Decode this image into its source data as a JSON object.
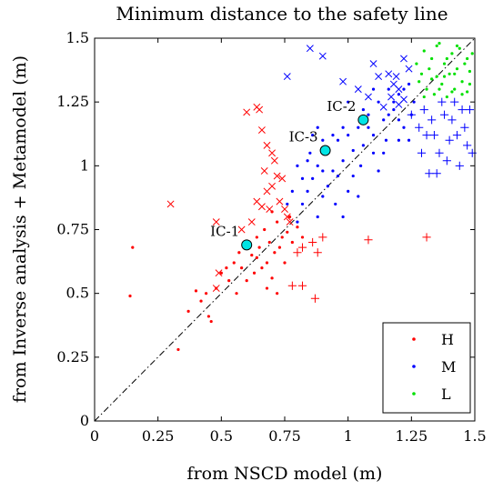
{
  "chart_data": {
    "type": "scatter",
    "title": "Minimum distance to the safety line",
    "xlabel": "from NSCD model (m)",
    "ylabel": "from Inverse analysis + Metamodel (m)",
    "xlim": [
      0,
      1.5
    ],
    "ylim": [
      0,
      1.5
    ],
    "x_ticks": [
      "0",
      "0.25",
      "0.5",
      "0.75",
      "1",
      "1.25",
      "1.5"
    ],
    "y_ticks": [
      "0",
      "0.25",
      "0.5",
      "0.75",
      "1",
      "1.25",
      "1.5"
    ],
    "grid": false,
    "legend_position": "bottom-right",
    "reference_line": {
      "type": "identity",
      "style": "dash-dot",
      "color": "#000000"
    },
    "colors": {
      "H": "#ff0000",
      "M": "#0000ff",
      "L": "#00e000",
      "IC": "#00e5e5"
    },
    "series": [
      {
        "name": "H",
        "marker": "dot",
        "color": "#ff0000",
        "points": [
          [
            0.15,
            0.68
          ],
          [
            0.14,
            0.49
          ],
          [
            0.33,
            0.28
          ],
          [
            0.37,
            0.43
          ],
          [
            0.4,
            0.51
          ],
          [
            0.42,
            0.47
          ],
          [
            0.44,
            0.5
          ],
          [
            0.45,
            0.41
          ],
          [
            0.46,
            0.39
          ],
          [
            0.48,
            0.52
          ],
          [
            0.5,
            0.58
          ],
          [
            0.52,
            0.6
          ],
          [
            0.53,
            0.55
          ],
          [
            0.55,
            0.62
          ],
          [
            0.56,
            0.5
          ],
          [
            0.57,
            0.66
          ],
          [
            0.58,
            0.6
          ],
          [
            0.6,
            0.55
          ],
          [
            0.61,
            0.7
          ],
          [
            0.62,
            0.65
          ],
          [
            0.63,
            0.58
          ],
          [
            0.64,
            0.72
          ],
          [
            0.65,
            0.68
          ],
          [
            0.66,
            0.6
          ],
          [
            0.67,
            0.75
          ],
          [
            0.68,
            0.62
          ],
          [
            0.69,
            0.7
          ],
          [
            0.7,
            0.56
          ],
          [
            0.71,
            0.66
          ],
          [
            0.72,
            0.78
          ],
          [
            0.73,
            0.68
          ],
          [
            0.74,
            0.72
          ],
          [
            0.75,
            0.62
          ],
          [
            0.76,
            0.74
          ],
          [
            0.77,
            0.8
          ],
          [
            0.78,
            0.7
          ],
          [
            0.8,
            0.76
          ],
          [
            0.82,
            0.72
          ],
          [
            0.68,
            0.52
          ],
          [
            0.72,
            0.5
          ],
          [
            0.64,
            0.64
          ],
          [
            0.7,
            0.82
          ]
        ]
      },
      {
        "name": "",
        "marker": "x",
        "color": "#ff0000",
        "points": [
          [
            0.3,
            0.85
          ],
          [
            0.49,
            0.58
          ],
          [
            0.48,
            0.52
          ],
          [
            0.48,
            0.78
          ],
          [
            0.58,
            0.75
          ],
          [
            0.6,
            1.21
          ],
          [
            0.64,
            1.23
          ],
          [
            0.65,
            1.22
          ],
          [
            0.66,
            1.14
          ],
          [
            0.67,
            0.98
          ],
          [
            0.68,
            1.08
          ],
          [
            0.68,
            0.9
          ],
          [
            0.7,
            1.05
          ],
          [
            0.71,
            1.02
          ],
          [
            0.72,
            0.96
          ],
          [
            0.73,
            0.86
          ],
          [
            0.74,
            0.95
          ],
          [
            0.75,
            0.83
          ],
          [
            0.76,
            0.8
          ],
          [
            0.77,
            0.78
          ],
          [
            0.64,
            0.86
          ],
          [
            0.66,
            0.84
          ],
          [
            0.62,
            0.78
          ],
          [
            0.7,
            0.92
          ],
          [
            0.69,
            0.83
          ]
        ]
      },
      {
        "name": "",
        "marker": "plus",
        "color": "#ff0000",
        "points": [
          [
            0.78,
            0.53
          ],
          [
            0.82,
            0.53
          ],
          [
            0.87,
            0.48
          ],
          [
            0.88,
            0.66
          ],
          [
            0.8,
            0.66
          ],
          [
            0.86,
            0.7
          ],
          [
            0.82,
            0.68
          ],
          [
            0.9,
            0.72
          ],
          [
            1.08,
            0.71
          ],
          [
            1.31,
            0.72
          ]
        ]
      },
      {
        "name": "M",
        "marker": "dot",
        "color": "#0000ff",
        "points": [
          [
            0.8,
            0.78
          ],
          [
            0.82,
            0.85
          ],
          [
            0.84,
            0.9
          ],
          [
            0.86,
            0.95
          ],
          [
            0.88,
            1.0
          ],
          [
            0.9,
            0.88
          ],
          [
            0.92,
            1.05
          ],
          [
            0.94,
            0.98
          ],
          [
            0.96,
            1.1
          ],
          [
            0.98,
            1.02
          ],
          [
            1.0,
            1.12
          ],
          [
            1.02,
            0.96
          ],
          [
            1.04,
            1.15
          ],
          [
            1.06,
            1.08
          ],
          [
            1.08,
            1.2
          ],
          [
            1.1,
            1.12
          ],
          [
            1.12,
            1.25
          ],
          [
            1.14,
            1.18
          ],
          [
            1.16,
            1.3
          ],
          [
            1.18,
            1.22
          ],
          [
            1.2,
            1.28
          ],
          [
            1.22,
            1.15
          ],
          [
            1.24,
            1.32
          ],
          [
            1.25,
            1.2
          ],
          [
            0.78,
            0.9
          ],
          [
            0.8,
            1.0
          ],
          [
            0.85,
            1.05
          ],
          [
            0.88,
            0.8
          ],
          [
            0.9,
            1.1
          ],
          [
            0.95,
            0.85
          ],
          [
            1.0,
            0.9
          ],
          [
            1.05,
            1.0
          ],
          [
            1.1,
            1.05
          ],
          [
            1.15,
            1.1
          ],
          [
            1.2,
            1.18
          ],
          [
            0.86,
            1.12
          ],
          [
            0.92,
            0.92
          ],
          [
            0.98,
            1.15
          ],
          [
            1.04,
            0.88
          ],
          [
            1.12,
            0.98
          ],
          [
            1.18,
            1.25
          ],
          [
            1.22,
            1.3
          ],
          [
            0.82,
            0.95
          ],
          [
            0.84,
            1.02
          ],
          [
            0.96,
            0.96
          ],
          [
            1.06,
            1.22
          ],
          [
            1.14,
            1.05
          ],
          [
            1.24,
            1.1
          ],
          [
            0.94,
            1.12
          ],
          [
            1.02,
            1.06
          ],
          [
            0.76,
            0.85
          ],
          [
            0.9,
            0.98
          ],
          [
            1.08,
            1.15
          ],
          [
            1.16,
            1.2
          ],
          [
            1.2,
            1.1
          ],
          [
            0.98,
            0.8
          ],
          [
            1.1,
            1.3
          ],
          [
            1.0,
            1.25
          ],
          [
            0.88,
            1.15
          ],
          [
            1.26,
            1.25
          ]
        ]
      },
      {
        "name": "",
        "marker": "x",
        "color": "#0000ff",
        "points": [
          [
            0.76,
            1.35
          ],
          [
            0.85,
            1.46
          ],
          [
            0.9,
            1.43
          ],
          [
            0.98,
            1.33
          ],
          [
            1.04,
            1.3
          ],
          [
            1.08,
            1.27
          ],
          [
            1.1,
            1.4
          ],
          [
            1.12,
            1.35
          ],
          [
            1.16,
            1.36
          ],
          [
            1.18,
            1.32
          ],
          [
            1.2,
            1.3
          ],
          [
            1.22,
            1.42
          ],
          [
            1.24,
            1.38
          ],
          [
            1.22,
            1.26
          ],
          [
            1.2,
            1.24
          ],
          [
            1.17,
            1.27
          ],
          [
            1.14,
            1.23
          ],
          [
            1.19,
            1.35
          ]
        ]
      },
      {
        "name": "",
        "marker": "plus",
        "color": "#0000ff",
        "points": [
          [
            1.25,
            1.2
          ],
          [
            1.28,
            1.15
          ],
          [
            1.3,
            1.22
          ],
          [
            1.32,
            0.97
          ],
          [
            1.34,
            1.12
          ],
          [
            1.36,
            1.05
          ],
          [
            1.38,
            1.2
          ],
          [
            1.4,
            1.1
          ],
          [
            1.42,
            1.25
          ],
          [
            1.44,
            1.0
          ],
          [
            1.46,
            1.15
          ],
          [
            1.47,
            1.08
          ],
          [
            1.48,
            1.22
          ],
          [
            1.49,
            1.05
          ],
          [
            1.35,
            0.97
          ],
          [
            1.33,
            1.18
          ],
          [
            1.37,
            1.25
          ],
          [
            1.41,
            1.18
          ],
          [
            1.43,
            1.12
          ],
          [
            1.45,
            1.22
          ],
          [
            1.29,
            1.05
          ],
          [
            1.31,
            1.12
          ],
          [
            1.39,
            1.02
          ]
        ]
      },
      {
        "name": "L",
        "marker": "dot",
        "color": "#00e000",
        "points": [
          [
            1.27,
            1.4
          ],
          [
            1.28,
            1.33
          ],
          [
            1.3,
            1.45
          ],
          [
            1.31,
            1.3
          ],
          [
            1.32,
            1.38
          ],
          [
            1.33,
            1.42
          ],
          [
            1.34,
            1.28
          ],
          [
            1.35,
            1.35
          ],
          [
            1.36,
            1.48
          ],
          [
            1.37,
            1.32
          ],
          [
            1.38,
            1.4
          ],
          [
            1.39,
            1.27
          ],
          [
            1.4,
            1.36
          ],
          [
            1.41,
            1.44
          ],
          [
            1.42,
            1.3
          ],
          [
            1.43,
            1.38
          ],
          [
            1.44,
            1.46
          ],
          [
            1.45,
            1.33
          ],
          [
            1.46,
            1.4
          ],
          [
            1.47,
            1.29
          ],
          [
            1.48,
            1.37
          ],
          [
            1.49,
            1.44
          ],
          [
            1.3,
            1.27
          ],
          [
            1.33,
            1.34
          ],
          [
            1.36,
            1.3
          ],
          [
            1.39,
            1.42
          ],
          [
            1.42,
            1.36
          ],
          [
            1.45,
            1.28
          ],
          [
            1.48,
            1.32
          ],
          [
            1.35,
            1.47
          ],
          [
            1.41,
            1.29
          ],
          [
            1.47,
            1.42
          ],
          [
            1.29,
            1.36
          ],
          [
            1.43,
            1.47
          ],
          [
            1.38,
            1.35
          ]
        ]
      }
    ],
    "highlights": [
      {
        "label": "IC-1",
        "x": 0.6,
        "y": 0.69
      },
      {
        "label": "IC-2",
        "x": 1.06,
        "y": 1.18
      },
      {
        "label": "IC-3",
        "x": 0.91,
        "y": 1.06
      }
    ],
    "legend": [
      "H",
      "M",
      "L"
    ]
  }
}
